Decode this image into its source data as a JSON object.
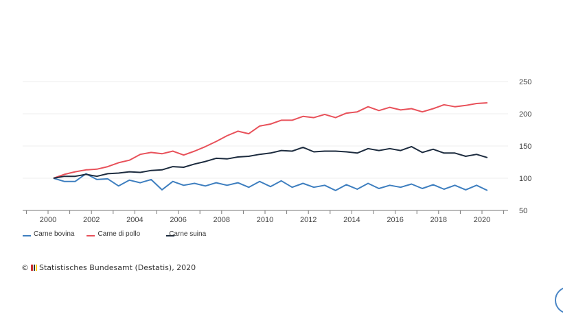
{
  "chart_data": {
    "type": "line",
    "title": "",
    "xlabel": "",
    "ylabel": "",
    "x_start": 2000.25,
    "x_step": 0.5,
    "x_ticks": [
      "2000",
      "2002",
      "2004",
      "2006",
      "2008",
      "2010",
      "2012",
      "2014",
      "2016",
      "2018",
      "2020"
    ],
    "y_ticks": [
      "50",
      "100",
      "150",
      "200",
      "250"
    ],
    "ylim": [
      50,
      250
    ],
    "xlim": [
      1999,
      2021.2
    ],
    "grid": true,
    "y_axis_side": "right",
    "legend_placement": "bottom-left",
    "series": [
      {
        "name": "Carne bovina",
        "color": "#3d7ebf",
        "values": [
          100,
          95,
          95,
          107,
          98,
          99,
          88,
          97,
          93,
          98,
          82,
          95,
          89,
          92,
          88,
          93,
          89,
          93,
          86,
          95,
          87,
          96,
          86,
          92,
          86,
          89,
          81,
          90,
          83,
          92,
          84,
          89,
          86,
          91,
          84,
          90,
          83,
          89,
          82,
          89,
          81
        ]
      },
      {
        "name": "Carne di pollo",
        "color": "#e8515a",
        "values": [
          100,
          106,
          110,
          113,
          114,
          118,
          124,
          128,
          137,
          140,
          138,
          142,
          136,
          142,
          149,
          157,
          166,
          173,
          169,
          181,
          184,
          190,
          190,
          196,
          194,
          199,
          194,
          201,
          203,
          211,
          205,
          210,
          206,
          208,
          203,
          208,
          214,
          211,
          213,
          216,
          217
        ]
      },
      {
        "name": "Carne suina",
        "color": "#1c2b3e",
        "values": [
          100,
          103,
          103,
          106,
          103,
          107,
          108,
          110,
          109,
          112,
          113,
          118,
          117,
          122,
          126,
          131,
          130,
          133,
          134,
          137,
          139,
          143,
          142,
          148,
          141,
          142,
          142,
          141,
          139,
          146,
          143,
          146,
          143,
          149,
          140,
          145,
          139,
          139,
          134,
          137,
          132
        ]
      }
    ]
  },
  "source": "Statistisches Bundesamt (Destatis), 2020",
  "copyright_symbol": "©"
}
